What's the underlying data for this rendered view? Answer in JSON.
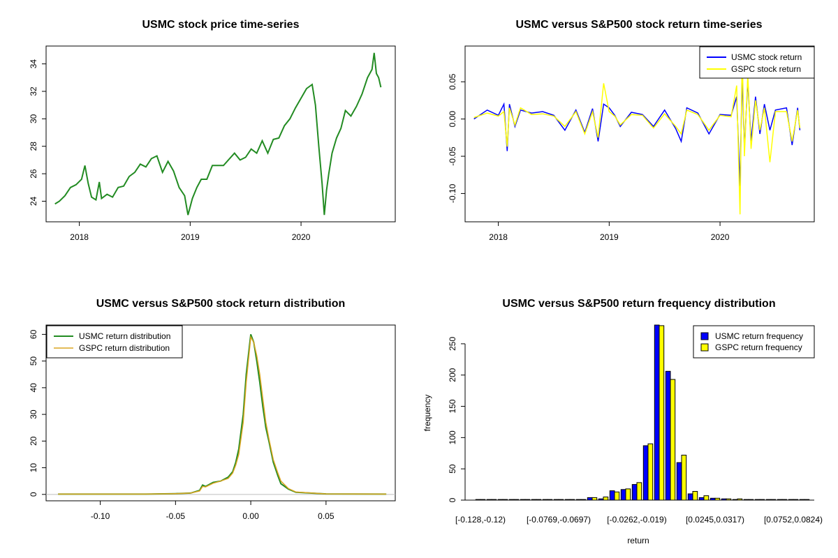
{
  "colors": {
    "price": "#228B22",
    "usmc_ret": "#0000FF",
    "gspc_ret": "#FFFF00",
    "usmc_dist": "#228B22",
    "gspc_dist": "#DAA520",
    "hist_usmc": "#0000FF",
    "hist_gspc": "#FFFF00"
  },
  "chart_data": [
    {
      "type": "line",
      "title": "USMC stock price time-series",
      "xlabel": "",
      "ylabel": "",
      "x_ticks": [
        {
          "value": 2018.0,
          "label": "2018"
        },
        {
          "value": 2019.0,
          "label": "2019"
        },
        {
          "value": 2020.0,
          "label": "2020"
        }
      ],
      "y_ticks": [
        "24",
        "26",
        "28",
        "30",
        "32",
        "34"
      ],
      "xlim": [
        2017.7,
        2020.85
      ],
      "ylim": [
        22.5,
        35.3
      ],
      "series": [
        {
          "x": [
            2017.78,
            2017.82,
            2017.87,
            2017.92,
            2017.97,
            2018.02,
            2018.05,
            2018.08,
            2018.11,
            2018.15,
            2018.18,
            2018.2,
            2018.25,
            2018.3,
            2018.35,
            2018.4,
            2018.45,
            2018.5,
            2018.55,
            2018.6,
            2018.65,
            2018.7,
            2018.75,
            2018.8,
            2018.85,
            2018.9,
            2018.95,
            2018.98,
            2019.02,
            2019.06,
            2019.1,
            2019.15,
            2019.2,
            2019.3,
            2019.4,
            2019.45,
            2019.5,
            2019.55,
            2019.6,
            2019.65,
            2019.7,
            2019.75,
            2019.8,
            2019.85,
            2019.9,
            2019.95,
            2020.0,
            2020.05,
            2020.1,
            2020.13,
            2020.16,
            2020.19,
            2020.21,
            2020.23,
            2020.25,
            2020.28,
            2020.32,
            2020.36,
            2020.4,
            2020.45,
            2020.5,
            2020.55,
            2020.6,
            2020.64,
            2020.66,
            2020.68,
            2020.7,
            2020.72
          ],
          "y": [
            23.8,
            24.0,
            24.4,
            25.0,
            25.2,
            25.6,
            26.6,
            25.3,
            24.3,
            24.1,
            25.4,
            24.2,
            24.5,
            24.3,
            25.0,
            25.1,
            25.8,
            26.1,
            26.7,
            26.5,
            27.1,
            27.3,
            26.1,
            26.9,
            26.2,
            25.0,
            24.4,
            23.0,
            24.2,
            25.0,
            25.6,
            25.6,
            26.6,
            26.6,
            27.5,
            27.0,
            27.2,
            27.8,
            27.5,
            28.4,
            27.5,
            28.5,
            28.6,
            29.5,
            30.0,
            30.8,
            31.5,
            32.2,
            32.5,
            31.0,
            28.0,
            25.3,
            23.0,
            24.8,
            26.0,
            27.5,
            28.6,
            29.3,
            30.6,
            30.2,
            30.9,
            31.8,
            33.0,
            33.6,
            34.8,
            33.3,
            33.0,
            32.3
          ]
        }
      ]
    },
    {
      "type": "line",
      "title": "USMC versus S&P500 stock return time-series",
      "xlabel": "",
      "ylabel": "",
      "x_ticks": [
        {
          "value": 2018.0,
          "label": "2018"
        },
        {
          "value": 2019.0,
          "label": "2019"
        },
        {
          "value": 2020.0,
          "label": "2020"
        }
      ],
      "y_ticks": [
        {
          "value": 0.05,
          "label": "0.05"
        },
        {
          "value": 0.0,
          "label": "0.00"
        },
        {
          "value": -0.05,
          "label": "-0.05"
        },
        {
          "value": -0.1,
          "label": "-0.10"
        }
      ],
      "xlim": [
        2017.7,
        2020.85
      ],
      "ylim": [
        -0.138,
        0.098
      ],
      "legend": {
        "position": "top-right"
      },
      "series": [
        {
          "name": "USMC stock return",
          "x": [
            2017.78,
            2017.9,
            2018.0,
            2018.05,
            2018.08,
            2018.1,
            2018.15,
            2018.2,
            2018.3,
            2018.4,
            2018.5,
            2018.6,
            2018.7,
            2018.78,
            2018.85,
            2018.9,
            2018.95,
            2019.0,
            2019.05,
            2019.1,
            2019.2,
            2019.3,
            2019.4,
            2019.5,
            2019.6,
            2019.65,
            2019.7,
            2019.8,
            2019.9,
            2020.0,
            2020.1,
            2020.15,
            2020.18,
            2020.2,
            2020.22,
            2020.25,
            2020.28,
            2020.32,
            2020.36,
            2020.4,
            2020.45,
            2020.5,
            2020.6,
            2020.65,
            2020.7,
            2020.72
          ],
          "y": [
            0.0,
            0.012,
            0.005,
            0.02,
            -0.043,
            0.02,
            -0.01,
            0.012,
            0.008,
            0.01,
            0.005,
            -0.015,
            0.012,
            -0.018,
            0.014,
            -0.03,
            0.02,
            0.015,
            0.005,
            -0.01,
            0.009,
            0.006,
            -0.01,
            0.012,
            -0.013,
            -0.03,
            0.015,
            0.008,
            -0.02,
            0.006,
            0.005,
            0.03,
            -0.09,
            0.06,
            -0.04,
            0.052,
            -0.03,
            0.03,
            -0.02,
            0.02,
            -0.015,
            0.012,
            0.015,
            -0.035,
            0.015,
            -0.015
          ]
        },
        {
          "name": "GSPC stock return",
          "x": [
            2017.78,
            2017.9,
            2018.0,
            2018.05,
            2018.08,
            2018.1,
            2018.15,
            2018.2,
            2018.3,
            2018.4,
            2018.5,
            2018.6,
            2018.7,
            2018.78,
            2018.85,
            2018.9,
            2018.95,
            2019.0,
            2019.05,
            2019.1,
            2019.2,
            2019.3,
            2019.4,
            2019.5,
            2019.6,
            2019.65,
            2019.7,
            2019.8,
            2019.9,
            2020.0,
            2020.1,
            2020.15,
            2020.18,
            2020.2,
            2020.22,
            2020.25,
            2020.28,
            2020.32,
            2020.36,
            2020.4,
            2020.45,
            2020.5,
            2020.6,
            2020.65,
            2020.7,
            2020.72
          ],
          "y": [
            0.002,
            0.008,
            0.004,
            0.01,
            -0.037,
            0.015,
            -0.008,
            0.015,
            0.006,
            0.007,
            0.004,
            -0.01,
            0.01,
            -0.02,
            0.01,
            -0.025,
            0.048,
            0.01,
            0.004,
            -0.008,
            0.006,
            0.005,
            -0.012,
            0.007,
            -0.01,
            -0.02,
            0.012,
            0.006,
            -0.015,
            0.005,
            0.003,
            0.045,
            -0.128,
            0.09,
            -0.05,
            0.06,
            -0.04,
            0.025,
            -0.015,
            0.015,
            -0.058,
            0.01,
            0.01,
            -0.03,
            0.012,
            -0.012
          ]
        }
      ]
    },
    {
      "type": "line",
      "title": "USMC versus S&P500 stock return distribution",
      "xlabel": "",
      "ylabel": "",
      "x_ticks": [
        {
          "value": -0.1,
          "label": "-0.10"
        },
        {
          "value": -0.05,
          "label": "-0.05"
        },
        {
          "value": 0.0,
          "label": "0.00"
        },
        {
          "value": 0.05,
          "label": "0.05"
        }
      ],
      "y_ticks": [
        "0",
        "10",
        "20",
        "30",
        "40",
        "50",
        "60"
      ],
      "xlim": [
        -0.136,
        0.096
      ],
      "ylim": [
        -2.4,
        63.5
      ],
      "legend": {
        "position": "top-left"
      },
      "series": [
        {
          "name": "USMC return distribution",
          "x": [
            -0.128,
            -0.1,
            -0.07,
            -0.05,
            -0.04,
            -0.034,
            -0.032,
            -0.03,
            -0.025,
            -0.02,
            -0.015,
            -0.012,
            -0.01,
            -0.008,
            -0.005,
            -0.003,
            0.0,
            0.002,
            0.004,
            0.006,
            0.008,
            0.01,
            0.012,
            0.015,
            0.018,
            0.02,
            0.025,
            0.03,
            0.05,
            0.09
          ],
          "y": [
            0.1,
            0.1,
            0.1,
            0.3,
            0.5,
            1.5,
            3.5,
            3.0,
            4.5,
            5.0,
            6.5,
            8.5,
            12.0,
            17.0,
            30.0,
            45.0,
            60.0,
            57.0,
            50.0,
            42.0,
            33.0,
            25.0,
            20.0,
            12.0,
            7.0,
            4.0,
            2.0,
            0.8,
            0.2,
            0.1
          ]
        },
        {
          "name": "GSPC return distribution",
          "x": [
            -0.128,
            -0.1,
            -0.07,
            -0.05,
            -0.04,
            -0.034,
            -0.032,
            -0.03,
            -0.025,
            -0.02,
            -0.015,
            -0.012,
            -0.01,
            -0.008,
            -0.005,
            -0.003,
            0.0,
            0.002,
            0.004,
            0.006,
            0.008,
            0.01,
            0.012,
            0.015,
            0.018,
            0.02,
            0.025,
            0.03,
            0.05,
            0.09
          ],
          "y": [
            0.1,
            0.1,
            0.1,
            0.3,
            0.5,
            1.3,
            3.0,
            2.8,
            4.2,
            5.0,
            6.0,
            8.0,
            11.0,
            15.0,
            27.0,
            42.0,
            59.0,
            57.0,
            52.0,
            45.0,
            36.0,
            27.0,
            21.0,
            13.0,
            8.0,
            5.0,
            2.2,
            0.9,
            0.2,
            0.1
          ]
        }
      ]
    },
    {
      "type": "bar",
      "title": "USMC versus S&P500 return frequency distribution",
      "xlabel": "return",
      "ylabel": "frequency",
      "ylim": [
        0,
        280
      ],
      "y_ticks": [
        "0",
        "50",
        "100",
        "150",
        "200",
        "250"
      ],
      "x_tick_labels": [
        "[-0.128,-0.12)",
        "[-0.0769,-0.0697)",
        "[-0.0262,-0.019)",
        "[0.0245,0.0317)",
        "[0.0752,0.0824)"
      ],
      "x_tick_bins": [
        0,
        7,
        14,
        21,
        28
      ],
      "legend": {
        "position": "top-right"
      },
      "series": [
        {
          "name": "USMC return frequency",
          "values": [
            1,
            1,
            1,
            1,
            1,
            1,
            1,
            1,
            1,
            1,
            4,
            2,
            15,
            17,
            25,
            87,
            280,
            206,
            60,
            10,
            4,
            3,
            2,
            1,
            1,
            1,
            1,
            1,
            1,
            1
          ]
        },
        {
          "name": "GSPC return frequency",
          "values": [
            1,
            1,
            1,
            1,
            1,
            1,
            1,
            1,
            1,
            1,
            4,
            5,
            13,
            18,
            28,
            90,
            279,
            193,
            72,
            14,
            7,
            3,
            2,
            2,
            1,
            1,
            1,
            1,
            1,
            1
          ]
        }
      ]
    }
  ]
}
